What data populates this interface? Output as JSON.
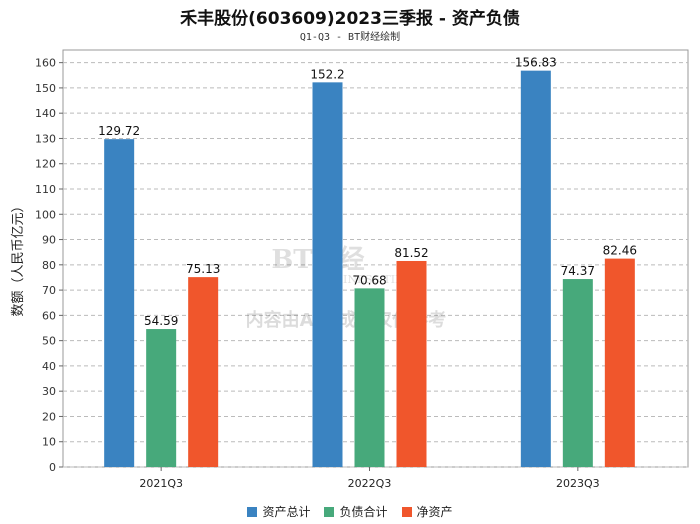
{
  "header": {
    "title": "禾丰股份(603609)2023三季报 - 资产负债",
    "subtitle": "Q1-Q3 - BT财经绘制"
  },
  "watermark": {
    "logo_text": "BT财经",
    "logo_sub": "BUSINESS TIMES",
    "notice": "内容由AI生成，仅供参考"
  },
  "chart_data": {
    "type": "bar",
    "title": "禾丰股份(603609)2023三季报 - 资产负债",
    "subtitle": "Q1-Q3 - BT财经绘制",
    "categories": [
      "2021Q3",
      "2022Q3",
      "2023Q3"
    ],
    "series": [
      {
        "name": "资产总计",
        "color": "#3a83c1",
        "values": [
          129.72,
          152.2,
          156.83
        ]
      },
      {
        "name": "负债合计",
        "color": "#47a97b",
        "values": [
          54.59,
          70.68,
          74.37
        ]
      },
      {
        "name": "净资产",
        "color": "#f0562c",
        "values": [
          75.13,
          81.52,
          82.46
        ]
      }
    ],
    "ylabel": "数额（人民币亿元）",
    "xlabel": "",
    "ylim": [
      0,
      165
    ],
    "yticks": [
      0,
      10,
      20,
      30,
      40,
      50,
      60,
      70,
      80,
      90,
      100,
      110,
      120,
      130,
      140,
      150,
      160
    ],
    "grid": true,
    "legend_position": "bottom-center"
  }
}
